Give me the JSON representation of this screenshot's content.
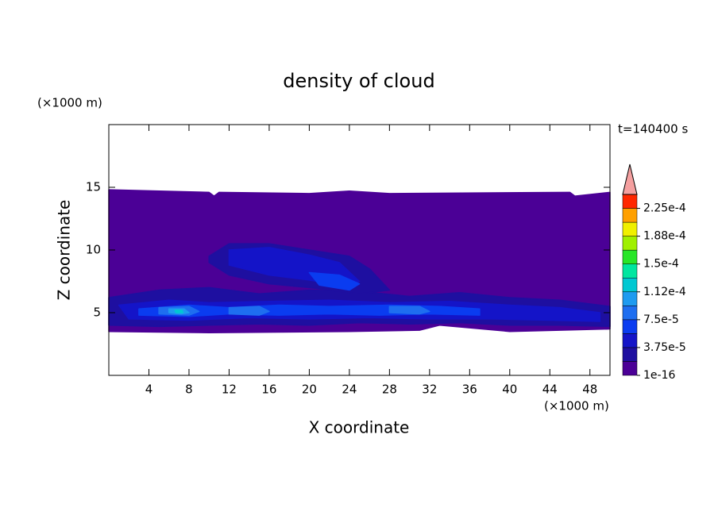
{
  "chart_data": {
    "type": "contour",
    "title": "density of cloud",
    "x_label": "X coordinate",
    "y_label": "Z coordinate",
    "x_unit": "(×1000 m)",
    "y_unit": "(×1000 m)",
    "time_label": "t=140400 s",
    "xlim": [
      0,
      50
    ],
    "ylim": [
      0,
      20
    ],
    "xticks": [
      4,
      8,
      12,
      16,
      20,
      24,
      28,
      32,
      36,
      40,
      44,
      48
    ],
    "yticks": [
      5,
      10,
      15
    ],
    "colorbar": {
      "lim": [
        1e-16,
        0.00024375
      ],
      "colors": [
        "#4b0096",
        "#1e0fa0",
        "#1414c8",
        "#0a3cf0",
        "#1e6ef0",
        "#1e9bf0",
        "#00c8d2",
        "#00e6a0",
        "#28e628",
        "#a0f000",
        "#f0f000",
        "#ffa000",
        "#ff2800"
      ],
      "extend_color": "#f5a0a0",
      "ticks": [
        {
          "value": 1e-16,
          "label": "1e-16"
        },
        {
          "value": 3.75e-05,
          "label": "3.75e-5"
        },
        {
          "value": 7.5e-05,
          "label": "7.5e-5"
        },
        {
          "value": 0.0001125,
          "label": "1.12e-4"
        },
        {
          "value": 0.00015,
          "label": "1.5e-4"
        },
        {
          "value": 0.0001875,
          "label": "1.88e-4"
        },
        {
          "value": 0.000225,
          "label": "2.25e-4"
        }
      ]
    },
    "regions": [
      {
        "value": 1e-05,
        "x": [
          0,
          10,
          10.5,
          11,
          20,
          24,
          28,
          46,
          46.5,
          50,
          50,
          40,
          33,
          31,
          24,
          10,
          0
        ],
        "y": [
          14.8,
          14.6,
          14.3,
          14.6,
          14.5,
          14.7,
          14.5,
          14.6,
          14.3,
          14.6,
          3.7,
          3.5,
          4.0,
          3.6,
          3.5,
          3.4,
          3.5
        ]
      },
      {
        "value": 2.8e-05,
        "x": [
          0,
          5,
          10,
          15,
          20,
          25,
          30,
          35,
          40,
          45,
          50,
          50,
          45,
          40,
          35,
          30,
          25,
          20,
          15,
          10,
          5,
          0
        ],
        "y": [
          6.2,
          6.8,
          7.0,
          6.5,
          6.8,
          6.7,
          6.3,
          6.6,
          6.2,
          6.0,
          5.5,
          3.9,
          4.0,
          4.0,
          4.2,
          4.1,
          4.2,
          4.0,
          4.1,
          4.0,
          3.9,
          4.0
        ]
      },
      {
        "value": 2.8e-05,
        "x": [
          10,
          12,
          16,
          20,
          24,
          26,
          28,
          25,
          20,
          16,
          12,
          10
        ],
        "y": [
          9.5,
          10.5,
          10.5,
          10.0,
          9.5,
          8.5,
          6.8,
          6.5,
          7.0,
          7.3,
          8.0,
          9.0
        ]
      },
      {
        "value": 4.7e-05,
        "x": [
          1,
          6,
          10,
          16,
          22,
          28,
          34,
          40,
          45,
          49,
          49,
          44,
          38,
          32,
          26,
          20,
          14,
          8,
          2
        ],
        "y": [
          5.6,
          6.0,
          5.8,
          5.9,
          6.0,
          5.8,
          5.9,
          5.6,
          5.4,
          5.0,
          4.3,
          4.4,
          4.5,
          4.5,
          4.6,
          4.5,
          4.6,
          4.4,
          4.5
        ]
      },
      {
        "value": 4.7e-05,
        "x": [
          12,
          16,
          20,
          23,
          25,
          24,
          20,
          16,
          12
        ],
        "y": [
          10.0,
          10.2,
          9.6,
          9.0,
          7.5,
          7.0,
          7.6,
          8.0,
          8.8
        ]
      },
      {
        "value": 6.5e-05,
        "x": [
          3,
          8,
          12,
          17,
          22,
          28,
          33,
          37,
          37,
          32,
          27,
          22,
          17,
          12,
          8,
          3
        ],
        "y": [
          5.3,
          5.6,
          5.4,
          5.6,
          5.5,
          5.6,
          5.5,
          5.3,
          4.8,
          4.9,
          4.8,
          4.9,
          4.8,
          4.9,
          4.7,
          4.8
        ]
      },
      {
        "value": 6.5e-05,
        "x": [
          20,
          23,
          25,
          24,
          21
        ],
        "y": [
          8.2,
          8.0,
          7.3,
          6.8,
          7.2
        ]
      },
      {
        "value": 8.4e-05,
        "x": [
          5,
          8,
          9,
          8,
          5
        ],
        "y": [
          5.4,
          5.5,
          5.1,
          4.8,
          4.9
        ]
      },
      {
        "value": 8.4e-05,
        "x": [
          12,
          15,
          16,
          15,
          12
        ],
        "y": [
          5.4,
          5.5,
          5.1,
          4.8,
          4.9
        ]
      },
      {
        "value": 8.4e-05,
        "x": [
          28,
          31,
          32,
          31,
          28
        ],
        "y": [
          5.5,
          5.5,
          5.1,
          4.9,
          5.0
        ]
      },
      {
        "value": 0.000103,
        "x": [
          6,
          7.5,
          8,
          7.2,
          6
        ],
        "y": [
          5.3,
          5.3,
          5.0,
          4.9,
          5.0
        ]
      },
      {
        "value": 0.00012,
        "x": [
          6.6,
          7.3,
          7.4,
          6.7
        ],
        "y": [
          5.2,
          5.2,
          5.0,
          5.0
        ]
      }
    ]
  }
}
